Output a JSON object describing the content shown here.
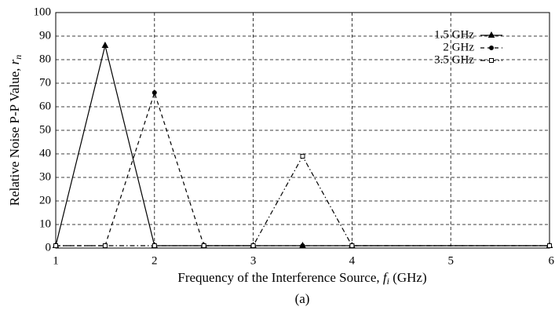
{
  "chart_data": {
    "type": "line",
    "xlabel": {
      "text": "Frequency of the Interference Source, ",
      "var": "f",
      "sub": "i",
      "unit": " (GHz)"
    },
    "ylabel": {
      "text": "Relative Noise P-P Value, ",
      "var": "r",
      "sub": "n"
    },
    "caption": "(a)",
    "x": [
      1,
      1.5,
      2,
      2.5,
      3,
      3.5,
      4,
      6
    ],
    "series": [
      {
        "name": "1.5 GHz",
        "color": "#000000",
        "dash": "none",
        "marker": "triangle",
        "values": [
          1,
          86,
          1,
          1,
          1,
          1,
          1,
          1
        ]
      },
      {
        "name": "2 GHz",
        "color": "#000000",
        "dash": "5,4",
        "marker": "circle",
        "values": [
          1,
          1,
          66,
          1,
          1,
          1,
          1,
          1
        ]
      },
      {
        "name": "3.5 GHz",
        "color": "#000000",
        "dash": "6,3,1.5,3",
        "marker": "square",
        "values": [
          1,
          1,
          1,
          1,
          1,
          39,
          1,
          1
        ]
      }
    ],
    "xlim": [
      1,
      6
    ],
    "xticks": [
      1,
      2,
      3,
      4,
      5,
      6
    ],
    "ylim": [
      0,
      100
    ],
    "yticks": [
      0,
      10,
      20,
      30,
      40,
      50,
      60,
      70,
      80,
      90,
      100
    ],
    "grid": true,
    "legend": "upper right"
  }
}
